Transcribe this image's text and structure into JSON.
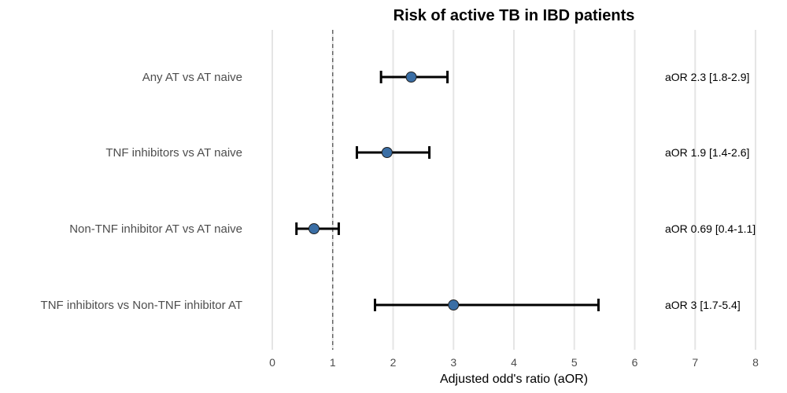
{
  "chart_data": {
    "type": "scatter",
    "title": "Risk of active TB in IBD patients",
    "xlabel": "Adjusted odd's ratio (aOR)",
    "ylabel": "",
    "xlim": [
      0,
      8
    ],
    "xticks": [
      0,
      1,
      2,
      3,
      4,
      5,
      6,
      7,
      8
    ],
    "reference_line": 1,
    "grid": true,
    "legend": "none",
    "point_color": "#3a6ea5",
    "gridline_color": "#e5e5e5",
    "categories": [
      "Any AT vs AT naive",
      "TNF inhibitors vs AT naive",
      "Non-TNF inhibitor AT vs AT naive",
      "TNF inhibitors vs Non-TNF inhibitor AT"
    ],
    "estimates": [
      2.3,
      1.9,
      0.69,
      3
    ],
    "lower": [
      1.8,
      1.4,
      0.4,
      1.7
    ],
    "upper": [
      2.9,
      2.6,
      1.1,
      5.4
    ],
    "annotations": [
      "aOR 2.3 [1.8-2.9]",
      "aOR 1.9 [1.4-2.6]",
      "aOR 0.69 [0.4-1.1]",
      "aOR 3 [1.7-5.4]"
    ]
  }
}
